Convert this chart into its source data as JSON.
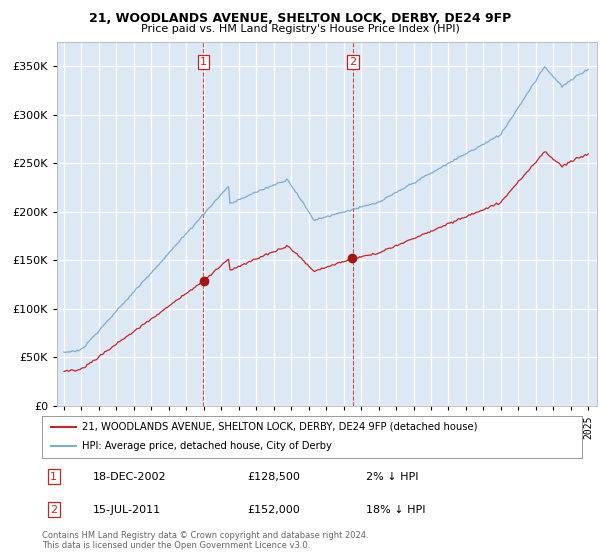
{
  "title": "21, WOODLANDS AVENUE, SHELTON LOCK, DERBY, DE24 9FP",
  "subtitle": "Price paid vs. HM Land Registry's House Price Index (HPI)",
  "legend_label_1": "21, WOODLANDS AVENUE, SHELTON LOCK, DERBY, DE24 9FP (detached house)",
  "legend_label_2": "HPI: Average price, detached house, City of Derby",
  "sale_1_date": "18-DEC-2002",
  "sale_1_price": "£128,500",
  "sale_1_hpi": "2% ↓ HPI",
  "sale_2_date": "15-JUL-2011",
  "sale_2_price": "£152,000",
  "sale_2_hpi": "18% ↓ HPI",
  "footnote": "Contains HM Land Registry data © Crown copyright and database right 2024.\nThis data is licensed under the Open Government Licence v3.0.",
  "hpi_color": "#7aadd4",
  "price_color": "#cc2222",
  "sale_marker_color": "#aa1111",
  "shade_color": "#dde8f5",
  "grid_color": "#cccccc",
  "ylim": [
    0,
    375000
  ],
  "yticks": [
    0,
    50000,
    100000,
    150000,
    200000,
    250000,
    300000,
    350000
  ],
  "sale1_year": 2002.96,
  "sale2_year": 2011.54,
  "xstart": 1995,
  "xend": 2025
}
